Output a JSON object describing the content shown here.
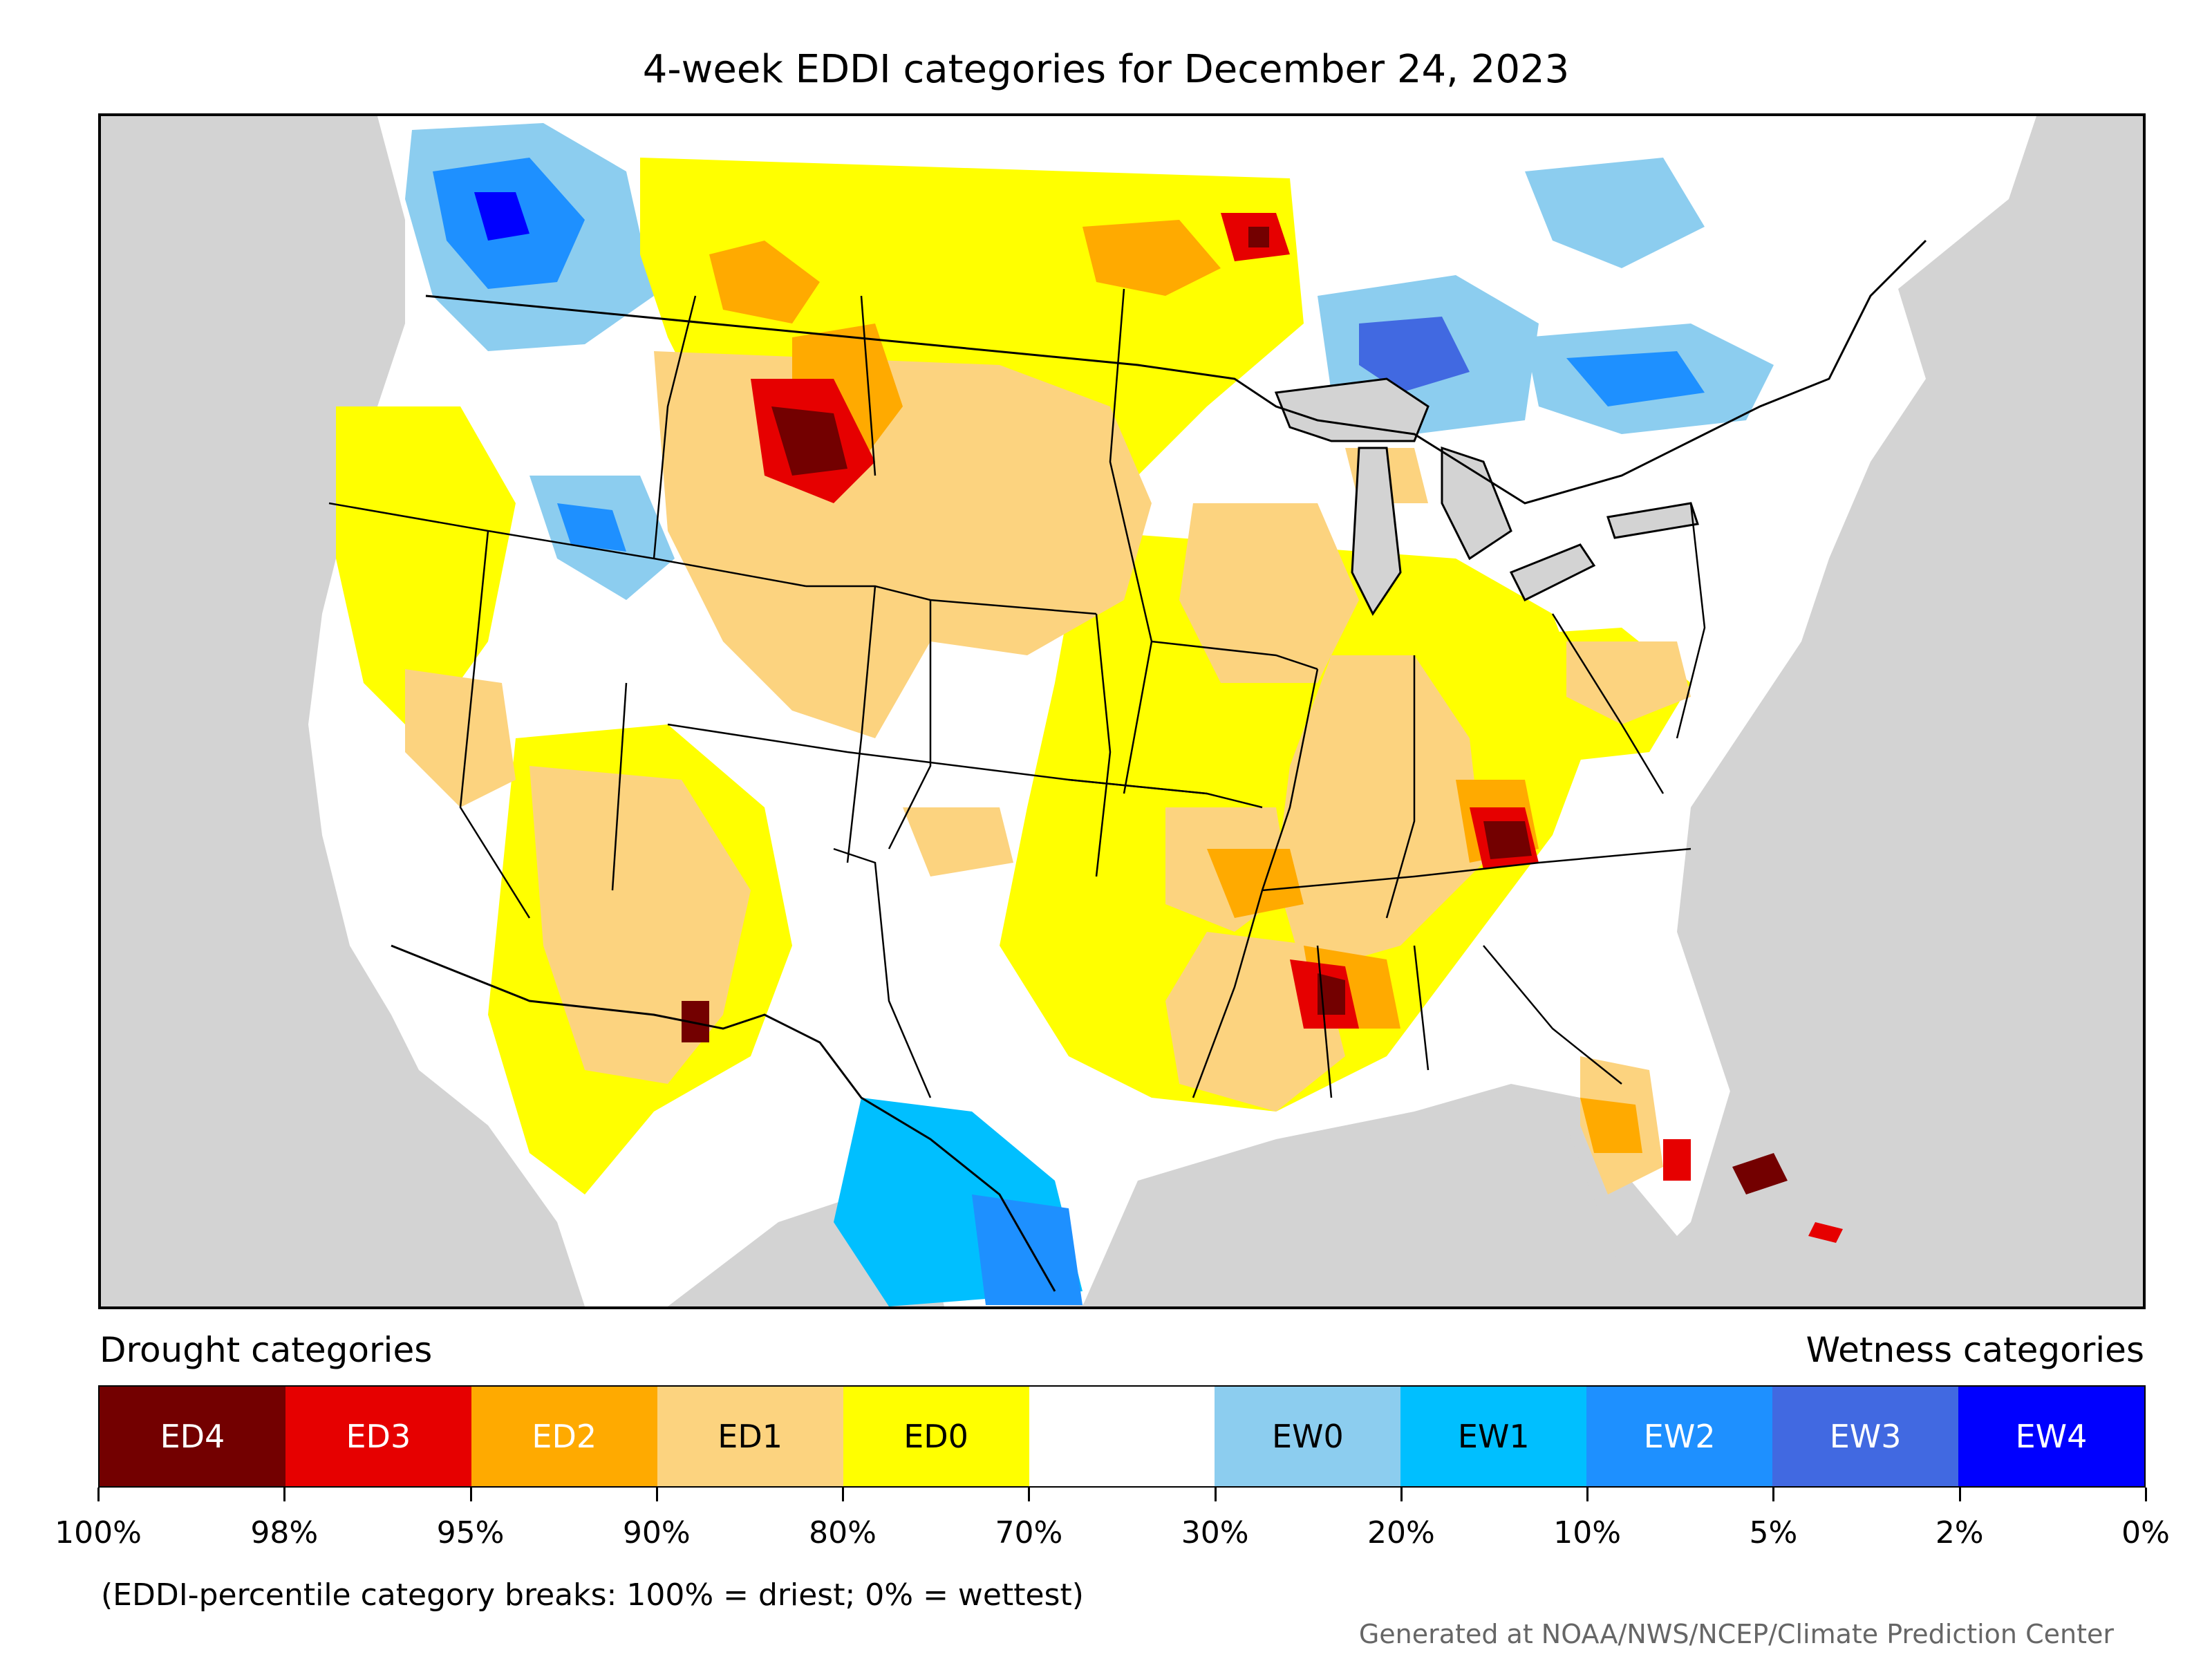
{
  "title": "4-week EDDI categories for December 24, 2023",
  "map": {
    "region": "Contiguous United States with southern Canada and northern Mexico",
    "background_color": "#d3d3d3",
    "nodata_color": "#ffffff",
    "boundary_color": "#000000"
  },
  "legend": {
    "drought_label": "Drought categories",
    "wetness_label": "Wetness categories",
    "categories": [
      {
        "label": "ED4",
        "color": "#730000",
        "text_color": "#ffffff"
      },
      {
        "label": "ED3",
        "color": "#e60000",
        "text_color": "#ffffff"
      },
      {
        "label": "ED2",
        "color": "#ffaa00",
        "text_color": "#ffffff"
      },
      {
        "label": "ED1",
        "color": "#fcd37f",
        "text_color": "#000000"
      },
      {
        "label": "ED0",
        "color": "#ffff00",
        "text_color": "#000000"
      },
      {
        "label": "",
        "color": "#ffffff",
        "text_color": "#000000"
      },
      {
        "label": "EW0",
        "color": "#8ccdef",
        "text_color": "#000000"
      },
      {
        "label": "EW1",
        "color": "#00bfff",
        "text_color": "#000000"
      },
      {
        "label": "EW2",
        "color": "#1e90ff",
        "text_color": "#ffffff"
      },
      {
        "label": "EW3",
        "color": "#4169e1",
        "text_color": "#ffffff"
      },
      {
        "label": "EW4",
        "color": "#0000ff",
        "text_color": "#ffffff"
      }
    ],
    "ticks": [
      "100%",
      "98%",
      "95%",
      "90%",
      "80%",
      "70%",
      "30%",
      "20%",
      "10%",
      "5%",
      "2%",
      "0%"
    ]
  },
  "note": "(EDDI-percentile category breaks: 100% = driest; 0% = wettest)",
  "credit": "Generated at NOAA/NWS/NCEP/Climate Prediction Center"
}
